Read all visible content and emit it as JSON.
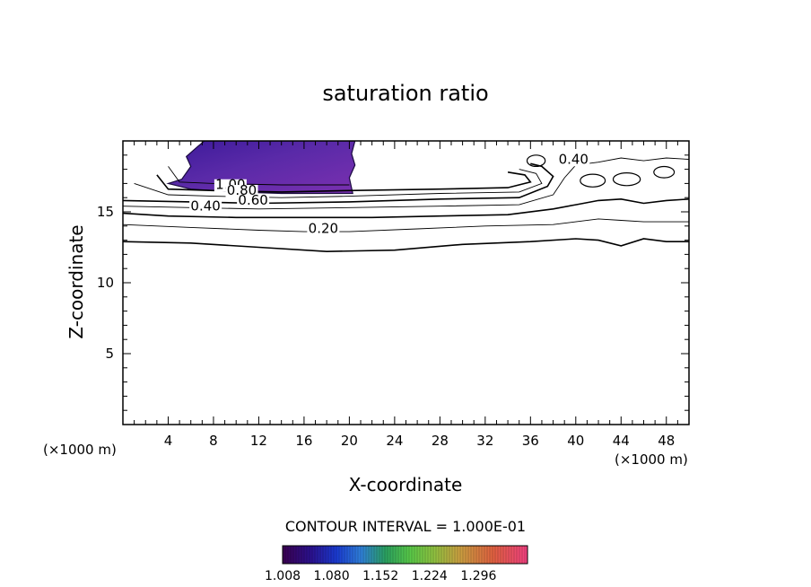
{
  "chart_data": {
    "type": "contour",
    "title": "saturation ratio",
    "xlabel": "X-coordinate",
    "ylabel": "Z-coordinate",
    "x_unit": "(×1000 m)",
    "z_unit": "(×1000 m)",
    "xlim": [
      0,
      50
    ],
    "ylim": [
      0,
      20
    ],
    "x_ticks": [
      4,
      8,
      12,
      16,
      20,
      24,
      28,
      32,
      36,
      40,
      44,
      48
    ],
    "y_ticks": [
      5,
      10,
      15
    ],
    "contour_interval_text": "CONTOUR INTERVAL = 1.000E-01",
    "contour_labels": [
      {
        "text": "0.40",
        "x": 39.8,
        "z": 18.4
      },
      {
        "text": "1.00",
        "x": 9.5,
        "z": 16.6
      },
      {
        "text": "0.80",
        "x": 10.5,
        "z": 16.2
      },
      {
        "text": "0.60",
        "x": 11.5,
        "z": 15.5
      },
      {
        "text": "0.40",
        "x": 7.3,
        "z": 15.1
      },
      {
        "text": "0.20",
        "x": 17.7,
        "z": 13.5
      }
    ],
    "contours": [
      {
        "level": 0.2,
        "points": [
          [
            0,
            12.9
          ],
          [
            6,
            12.8
          ],
          [
            12,
            12.5
          ],
          [
            18,
            12.2
          ],
          [
            24,
            12.3
          ],
          [
            30,
            12.7
          ],
          [
            36,
            12.9
          ],
          [
            40,
            13.1
          ],
          [
            42,
            13.0
          ],
          [
            44,
            12.6
          ],
          [
            46,
            13.1
          ],
          [
            48,
            12.9
          ],
          [
            50,
            12.9
          ]
        ]
      },
      {
        "level": 0.3,
        "points": [
          [
            0,
            14.1
          ],
          [
            6,
            13.9
          ],
          [
            12,
            13.7
          ],
          [
            16,
            13.6
          ],
          [
            18,
            13.6
          ],
          [
            20,
            13.6
          ],
          [
            26,
            13.8
          ],
          [
            32,
            14.0
          ],
          [
            38,
            14.1
          ],
          [
            40,
            14.3
          ],
          [
            42,
            14.5
          ],
          [
            44,
            14.4
          ],
          [
            46,
            14.3
          ],
          [
            50,
            14.3
          ]
        ]
      },
      {
        "level": 0.4,
        "points": [
          [
            0,
            14.9
          ],
          [
            4,
            14.7
          ],
          [
            10,
            14.6
          ],
          [
            16,
            14.6
          ],
          [
            22,
            14.6
          ],
          [
            28,
            14.7
          ],
          [
            34,
            14.8
          ],
          [
            38,
            15.2
          ],
          [
            40,
            15.5
          ],
          [
            42,
            15.8
          ],
          [
            44,
            15.9
          ],
          [
            46,
            15.6
          ],
          [
            48,
            15.8
          ],
          [
            50,
            15.9
          ]
        ]
      },
      {
        "level": 0.5,
        "points": [
          [
            0,
            15.4
          ],
          [
            6,
            15.3
          ],
          [
            12,
            15.2
          ],
          [
            20,
            15.3
          ],
          [
            28,
            15.4
          ],
          [
            35,
            15.5
          ],
          [
            38,
            16.2
          ],
          [
            39,
            17.4
          ],
          [
            40,
            18.3
          ],
          [
            42,
            18.5
          ],
          [
            44,
            18.8
          ],
          [
            46,
            18.6
          ],
          [
            48,
            18.8
          ],
          [
            50,
            18.7
          ]
        ]
      },
      {
        "level": 0.6,
        "points": [
          [
            0,
            15.8
          ],
          [
            6,
            15.7
          ],
          [
            12,
            15.6
          ],
          [
            20,
            15.7
          ],
          [
            28,
            15.9
          ],
          [
            35,
            16.0
          ],
          [
            37.5,
            16.8
          ],
          [
            38,
            17.5
          ],
          [
            37,
            18.2
          ],
          [
            36,
            18.4
          ]
        ]
      },
      {
        "level": 0.7,
        "points": [
          [
            1,
            17.0
          ],
          [
            4,
            16.2
          ],
          [
            8,
            16.1
          ],
          [
            14,
            16.0
          ],
          [
            20,
            16.1
          ],
          [
            28,
            16.3
          ],
          [
            35,
            16.4
          ],
          [
            37,
            17.0
          ],
          [
            36.5,
            17.7
          ],
          [
            35,
            18.0
          ]
        ]
      },
      {
        "level": 0.8,
        "points": [
          [
            3,
            17.6
          ],
          [
            4,
            16.6
          ],
          [
            8,
            16.5
          ],
          [
            14,
            16.4
          ],
          [
            20,
            16.5
          ],
          [
            28,
            16.6
          ],
          [
            34,
            16.7
          ],
          [
            36,
            17.1
          ],
          [
            35.5,
            17.6
          ],
          [
            34,
            17.8
          ]
        ]
      },
      {
        "level": 0.9,
        "points": [
          [
            4,
            18.2
          ],
          [
            5,
            17.1
          ],
          [
            8,
            17.0
          ],
          [
            14,
            16.9
          ],
          [
            20,
            16.9
          ]
        ]
      }
    ],
    "shading": {
      "variable": "saturation ratio",
      "region_x": [
        4,
        20.5
      ],
      "region_z": [
        16.3,
        20
      ],
      "colorbar_ticks": [
        1.008,
        1.08,
        1.152,
        1.224,
        1.296
      ],
      "colorbar_tick_labels": [
        "1.008",
        "1.080",
        "1.152",
        "1.224",
        "1.296"
      ],
      "colorbar_range": [
        1.008,
        1.368
      ],
      "colorbar_colors": [
        "#3a0050",
        "#2a1290",
        "#1a3ad0",
        "#2f7fd8",
        "#2aa060",
        "#58c848",
        "#90c040",
        "#c8a040",
        "#e06040",
        "#f04080"
      ]
    },
    "grid": false,
    "legend": "colorbar-bottom"
  }
}
